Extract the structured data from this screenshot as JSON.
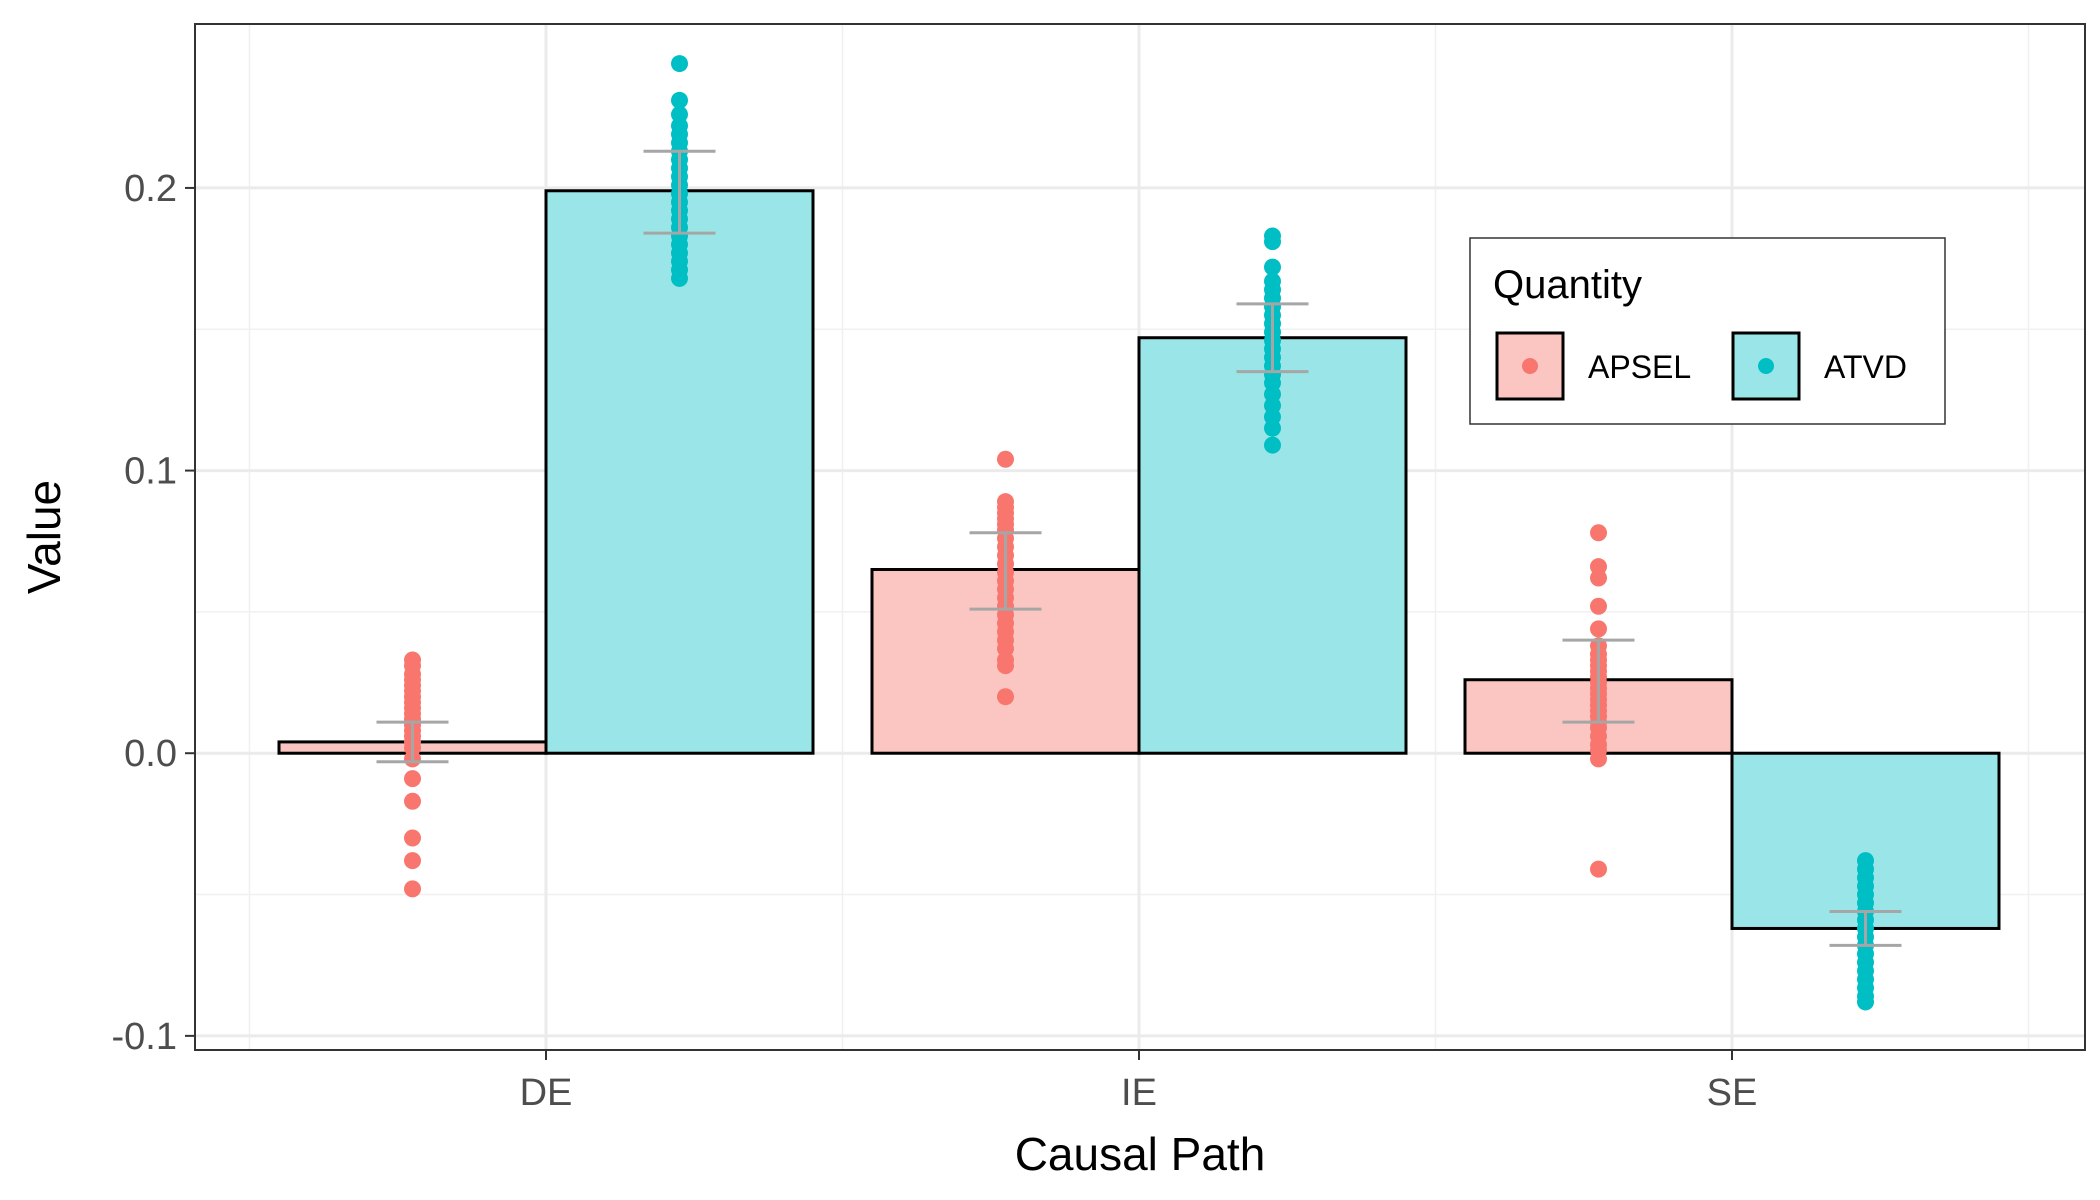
{
  "chart_data": {
    "type": "bar",
    "title": "",
    "xlabel": "Causal Path",
    "ylabel": "Value",
    "ylim": [
      -0.105,
      0.258
    ],
    "yticks": [
      -0.1,
      0.0,
      0.1,
      0.2
    ],
    "ytick_labels": [
      "-0.1",
      "0.0",
      "0.1",
      "0.2"
    ],
    "grid": true,
    "categories": [
      "DE",
      "IE",
      "SE"
    ],
    "legend": {
      "title": "Quantity",
      "placement": "right"
    },
    "series": [
      {
        "name": "APSEL",
        "color": "#f8766d",
        "fill": "#fbc6c2",
        "values": [
          0.004,
          0.065,
          0.026
        ],
        "error_low": [
          -0.003,
          0.051,
          0.011
        ],
        "error_high": [
          0.011,
          0.078,
          0.04
        ],
        "points": [
          [
            0.033,
            0.031,
            0.028,
            0.026,
            0.024,
            0.022,
            0.02,
            0.018,
            0.016,
            0.014,
            0.012,
            0.01,
            0.008,
            0.006,
            0.004,
            0.002,
            -0.002,
            -0.009,
            -0.017,
            -0.03,
            -0.038,
            -0.048
          ],
          [
            0.104,
            0.089,
            0.087,
            0.085,
            0.083,
            0.081,
            0.079,
            0.076,
            0.073,
            0.07,
            0.067,
            0.064,
            0.061,
            0.058,
            0.055,
            0.052,
            0.049,
            0.046,
            0.043,
            0.04,
            0.037,
            0.033,
            0.031,
            0.02
          ],
          [
            0.078,
            0.066,
            0.062,
            0.052,
            0.044,
            0.038,
            0.035,
            0.033,
            0.031,
            0.029,
            0.027,
            0.025,
            0.023,
            0.021,
            0.019,
            0.017,
            0.015,
            0.013,
            0.011,
            0.009,
            0.006,
            0.003,
            0.001,
            -0.002,
            -0.041
          ]
        ]
      },
      {
        "name": "ATVD",
        "color": "#00bfc4",
        "fill": "#99e5e7",
        "values": [
          0.199,
          0.147,
          -0.062
        ],
        "error_low": [
          0.184,
          0.135,
          -0.068
        ],
        "error_high": [
          0.213,
          0.159,
          -0.056
        ],
        "points": [
          [
            0.244,
            0.231,
            0.226,
            0.222,
            0.219,
            0.216,
            0.213,
            0.21,
            0.207,
            0.204,
            0.201,
            0.198,
            0.195,
            0.192,
            0.189,
            0.186,
            0.183,
            0.18,
            0.177,
            0.174,
            0.171,
            0.168
          ],
          [
            0.183,
            0.181,
            0.172,
            0.167,
            0.164,
            0.161,
            0.158,
            0.155,
            0.152,
            0.149,
            0.146,
            0.143,
            0.14,
            0.137,
            0.134,
            0.131,
            0.127,
            0.123,
            0.119,
            0.115,
            0.109
          ],
          [
            -0.038,
            -0.041,
            -0.044,
            -0.047,
            -0.05,
            -0.053,
            -0.056,
            -0.059,
            -0.062,
            -0.065,
            -0.068,
            -0.071,
            -0.074,
            -0.077,
            -0.08,
            -0.083,
            -0.086,
            -0.088
          ]
        ]
      }
    ]
  }
}
